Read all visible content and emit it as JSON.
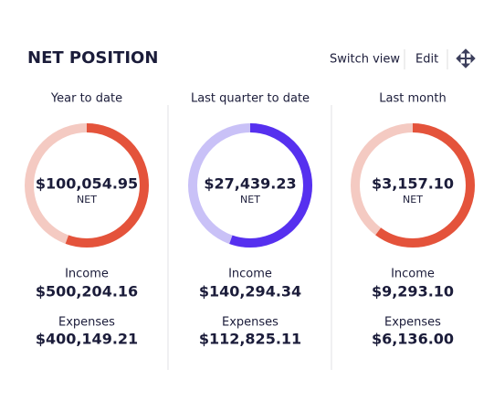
{
  "header": {
    "title": "NET POSITION",
    "actions": [
      "Switch view",
      "Edit"
    ]
  },
  "panels": [
    {
      "label": "Year to date",
      "net": "$100,054.95",
      "net_label": "NET",
      "income_label": "Income",
      "income": {
        "value": 500204.16,
        "label": "$500,204.16"
      },
      "expenses_label": "Expenses",
      "expenses": {
        "value": 400149.21,
        "label": "$400,149.21"
      },
      "color": "#e4533b",
      "track_color": "#f4cac2"
    },
    {
      "label": "Last quarter to date",
      "net": "$27,439.23",
      "net_label": "NET",
      "income_label": "Income",
      "income": {
        "value": 140294.34,
        "label": "$140,294.34"
      },
      "expenses_label": "Expenses",
      "expenses": {
        "value": 112825.11,
        "label": "$112,825.11"
      },
      "color": "#5630ef",
      "track_color": "#c9c1f7"
    },
    {
      "label": "Last month",
      "net": "$3,157.10",
      "net_label": "NET",
      "income_label": "Income",
      "income": {
        "value": 9293.1,
        "label": "$9,293.10"
      },
      "expenses_label": "Expenses",
      "expenses": {
        "value": 6136.0,
        "label": "$6,136.00"
      },
      "color": "#e4533b",
      "track_color": "#f4cac2"
    }
  ]
}
